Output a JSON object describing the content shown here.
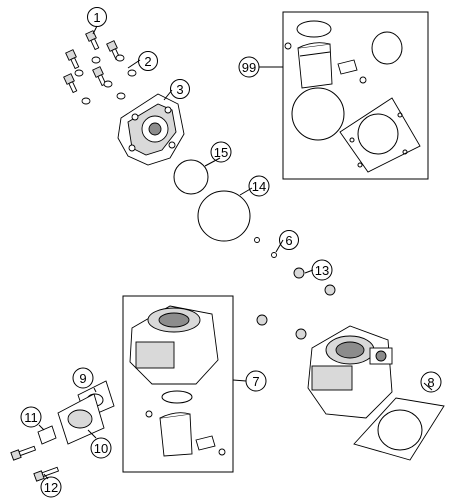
{
  "callouts": [
    {
      "id": "c1",
      "label": "1"
    },
    {
      "id": "c2",
      "label": "2"
    },
    {
      "id": "c3",
      "label": "3"
    },
    {
      "id": "c15",
      "label": "15"
    },
    {
      "id": "c14",
      "label": "14"
    },
    {
      "id": "c99",
      "label": "99"
    },
    {
      "id": "c6",
      "label": "6"
    },
    {
      "id": "c13",
      "label": "13"
    },
    {
      "id": "c7",
      "label": "7"
    },
    {
      "id": "c8",
      "label": "8"
    },
    {
      "id": "c9",
      "label": "9"
    },
    {
      "id": "c10",
      "label": "10"
    },
    {
      "id": "c11",
      "label": "11"
    },
    {
      "id": "c12",
      "label": "12"
    }
  ]
}
